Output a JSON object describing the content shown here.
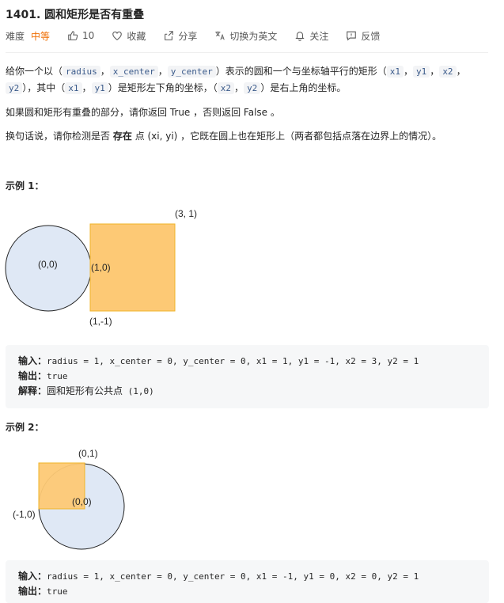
{
  "problem": {
    "title": "1401. 圆和矩形是否有重叠",
    "difficulty_label": "难度",
    "difficulty_value": "中等",
    "likes": "10",
    "collect_label": "收藏",
    "share_label": "分享",
    "translate_label": "切换为英文",
    "follow_label": "关注",
    "feedback_label": "反馈"
  },
  "desc": {
    "p1_a": "给你一个以（",
    "p1_radius": "radius",
    "p1_sep1": "，",
    "p1_xc": "x_center",
    "p1_sep2": "，",
    "p1_yc": "y_center",
    "p1_b": "）表示的圆和一个与坐标轴平行的矩形（",
    "p1_x1": "x1",
    "p1_sep3": "，",
    "p1_y1": "y1",
    "p1_sep4": "，",
    "p1_x2": "x2",
    "p1_sep5": "，",
    "p1_y2": "y2",
    "p1_c": "），其中（",
    "p1_x1b": "x1",
    "p1_sep6": "，",
    "p1_y1b": "y1",
    "p1_d": "）是矩形左下角的坐标，（",
    "p1_x2b": "x2",
    "p1_sep7": "，",
    "p1_y2b": "y2",
    "p1_e": "）是右上角的坐标。",
    "p2": "如果圆和矩形有重叠的部分，请你返回 True ，否则返回 False 。",
    "p3_a": "换句话说，请你检测是否",
    "p3_bold": "存在",
    "p3_b": "点 (xi, yi) ，它既在圆上也在矩形上（两者都包括点落在边界上的情况）。"
  },
  "example1": {
    "label": "示例 1：",
    "fig": {
      "circle_center_label": "(0,0)",
      "tangent_label": "(1,0)",
      "top_right_label": "(3, 1)",
      "bottom_left_label": "(1,-1)"
    },
    "input_key": "输入：",
    "input_val": "radius = 1, x_center = 0, y_center = 0, x1 = 1, y1 = -1, x2 = 3, y2 = 1",
    "output_key": "输出：",
    "output_val": "true",
    "explain_key": "解释：",
    "explain_zh": "圆和矩形有公共点",
    "explain_code": "(1,0)"
  },
  "example2": {
    "label": "示例 2：",
    "fig": {
      "top_label": "(0,1)",
      "center_label": "(0,0)",
      "left_label": "(-1,0)"
    },
    "input_key": "输入：",
    "input_val": "radius = 1, x_center = 0, y_center = 0, x1 = -1, y1 = 0, x2 = 0, y2 = 1",
    "output_key": "输出：",
    "output_val": "true"
  },
  "colors": {
    "circle_fill": "#dfe8f5",
    "rect_fill": "#fdc975",
    "rect_stroke": "#f0b429",
    "accent_medium": "#ef6c00"
  }
}
